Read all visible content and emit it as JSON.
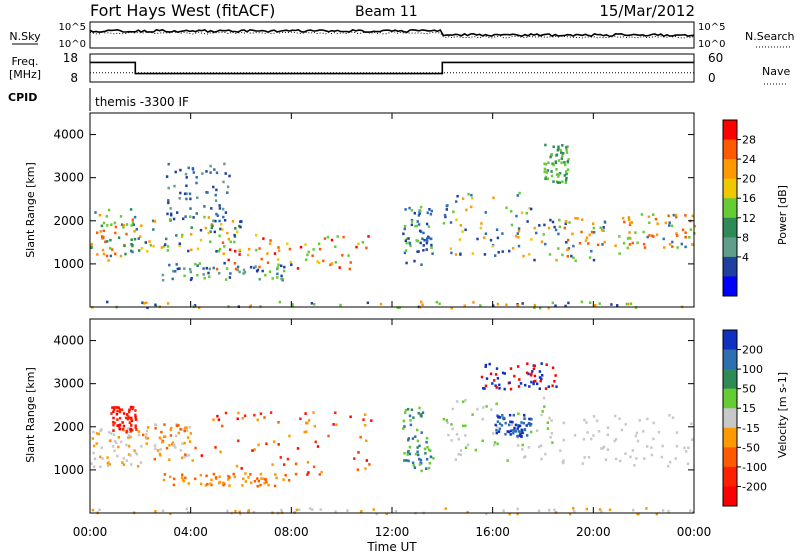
{
  "header": {
    "title": "Fort Hays West (fitACF)",
    "beam": "Beam 11",
    "date": "15/Mar/2012"
  },
  "strip_plots": {
    "sky_label": "N.Sky",
    "search_label": "N.Search",
    "sky_ticks": [
      "10^5",
      "10^0"
    ],
    "search_ticks": [
      "10^5",
      "10^0"
    ],
    "freq_label_line1": "Freq.",
    "freq_label_line2": "[MHz]",
    "freq_ticks": [
      "18",
      "8"
    ],
    "nave_label": "Nave",
    "nave_ticks": [
      "60",
      "0"
    ],
    "cpid_label": "CPID",
    "cpid_value": "themis -3300 IF"
  },
  "x_axis": {
    "label": "Time UT",
    "ticks": [
      "00:00",
      "04:00",
      "08:00",
      "12:00",
      "16:00",
      "20:00",
      "00:00"
    ]
  },
  "chart_data": [
    {
      "type": "heatmap",
      "name": "power",
      "ylabel": "Slant Range [km]",
      "y_ticks": [
        1000,
        2000,
        3000,
        4000
      ],
      "ylim": [
        0,
        4500
      ],
      "xlim_hours": [
        0,
        24
      ],
      "colorbar": {
        "label": "Power [dB]",
        "ticks": [
          "28",
          "24",
          "20",
          "16",
          "12",
          "8",
          "4"
        ],
        "colors": [
          "#ff0000",
          "#ff5a00",
          "#ff9900",
          "#f0c800",
          "#66cc33",
          "#2e8b57",
          "#5f9e8a",
          "#2040a0",
          "#0000ff"
        ]
      },
      "echo_regions": [
        {
          "t0": 0.0,
          "t1": 2.0,
          "r0": 1100,
          "r1": 2300,
          "colors": [
            "#2e6fb0",
            "#66cc33",
            "#2e8b57",
            "#ff9900",
            "#ff5a00"
          ]
        },
        {
          "t0": 2.0,
          "t1": 6.0,
          "r0": 1300,
          "r1": 2200,
          "colors": [
            "#66cc33",
            "#ff9900",
            "#2e8b57",
            "#2040a0",
            "#f0c800"
          ]
        },
        {
          "t0": 3.0,
          "t1": 5.5,
          "r0": 2000,
          "r1": 3400,
          "colors": [
            "#2040a0",
            "#2e6fb0",
            "#5f9e8a"
          ]
        },
        {
          "t0": 2.8,
          "t1": 8.0,
          "r0": 650,
          "r1": 1050,
          "colors": [
            "#2e6fb0",
            "#5f9e8a",
            "#66cc33",
            "#2040a0"
          ]
        },
        {
          "t0": 5.0,
          "t1": 11.2,
          "r0": 900,
          "r1": 1700,
          "colors": [
            "#ff5a00",
            "#ff9900",
            "#ff0000",
            "#f0c800",
            "#66cc33"
          ]
        },
        {
          "t0": 12.4,
          "t1": 13.6,
          "r0": 1000,
          "r1": 2400,
          "colors": [
            "#2040a0",
            "#2e6fb0",
            "#66cc33"
          ]
        },
        {
          "t0": 14.0,
          "t1": 17.6,
          "r0": 1200,
          "r1": 2700,
          "colors": [
            "#2e6fb0",
            "#66cc33",
            "#f0c800",
            "#ff9900",
            "#2040a0"
          ]
        },
        {
          "t0": 17.6,
          "t1": 21.0,
          "r0": 1100,
          "r1": 2100,
          "colors": [
            "#2040a0",
            "#ff9900",
            "#ff5a00",
            "#66cc33",
            "#2e6fb0"
          ]
        },
        {
          "t0": 21.0,
          "t1": 24.0,
          "r0": 1400,
          "r1": 2200,
          "colors": [
            "#ff5a00",
            "#ff9900",
            "#2e6fb0",
            "#66cc33"
          ]
        },
        {
          "t0": 18.0,
          "t1": 19.0,
          "r0": 2900,
          "r1": 3800,
          "colors": [
            "#66cc33",
            "#2e8b57"
          ]
        },
        {
          "t0": 0.0,
          "t1": 24.0,
          "r0": 0,
          "r1": 150,
          "colors": [
            "#66cc33",
            "#ff9900",
            "#2040a0"
          ]
        }
      ]
    },
    {
      "type": "heatmap",
      "name": "velocity",
      "ylabel": "Slant Range [km]",
      "y_ticks": [
        1000,
        2000,
        3000,
        4000
      ],
      "ylim": [
        0,
        4500
      ],
      "xlim_hours": [
        0,
        24
      ],
      "colorbar": {
        "label": "Velocity [m s-1]",
        "ticks": [
          "200",
          "100",
          "50",
          "15",
          "-15",
          "-50",
          "-100",
          "-200"
        ],
        "colors": [
          "#1030c0",
          "#2e6fb0",
          "#2e8b57",
          "#66cc33",
          "#c8c8c8",
          "#ff9900",
          "#ff5a00",
          "#ff2000",
          "#ff0000"
        ]
      },
      "echo_regions": [
        {
          "t0": 0.0,
          "t1": 2.0,
          "r0": 1100,
          "r1": 2000,
          "colors": [
            "#c8c8c8",
            "#c8c8c8",
            "#ff9900"
          ]
        },
        {
          "t0": 0.8,
          "t1": 1.8,
          "r0": 1900,
          "r1": 2500,
          "colors": [
            "#ff0000",
            "#ff2000"
          ]
        },
        {
          "t0": 2.0,
          "t1": 4.0,
          "r0": 1200,
          "r1": 2100,
          "colors": [
            "#ff9900",
            "#c8c8c8",
            "#ff5a00"
          ]
        },
        {
          "t0": 4.0,
          "t1": 11.2,
          "r0": 900,
          "r1": 2400,
          "colors": [
            "#ff2000",
            "#ff5a00",
            "#ff9900",
            "#ff0000"
          ]
        },
        {
          "t0": 2.8,
          "t1": 8.0,
          "r0": 650,
          "r1": 950,
          "colors": [
            "#ff9900",
            "#ff5a00"
          ]
        },
        {
          "t0": 12.4,
          "t1": 13.6,
          "r0": 1000,
          "r1": 2500,
          "colors": [
            "#66cc33",
            "#2e8b57",
            "#2e6fb0"
          ]
        },
        {
          "t0": 14.0,
          "t1": 18.5,
          "r0": 1200,
          "r1": 2700,
          "colors": [
            "#c8c8c8",
            "#c8c8c8",
            "#66cc33"
          ]
        },
        {
          "t0": 16.0,
          "t1": 17.5,
          "r0": 1800,
          "r1": 2300,
          "colors": [
            "#1030c0",
            "#2e6fb0"
          ]
        },
        {
          "t0": 18.5,
          "t1": 24.0,
          "r0": 1100,
          "r1": 2300,
          "colors": [
            "#c8c8c8",
            "#c8c8c8",
            "#c8c8c8"
          ]
        },
        {
          "t0": 15.5,
          "t1": 18.5,
          "r0": 2900,
          "r1": 3500,
          "colors": [
            "#1030c0",
            "#ff0000"
          ]
        },
        {
          "t0": 0.0,
          "t1": 24.0,
          "r0": 0,
          "r1": 150,
          "colors": [
            "#ff9900",
            "#c8c8c8"
          ]
        }
      ]
    }
  ],
  "freq_series": {
    "segments": [
      {
        "t0": 0,
        "t1": 1.8,
        "value": 15
      },
      {
        "t0": 1.8,
        "t1": 14.0,
        "value": 11
      },
      {
        "t0": 14.0,
        "t1": 24,
        "value": 15
      }
    ],
    "nave_value": 20
  }
}
